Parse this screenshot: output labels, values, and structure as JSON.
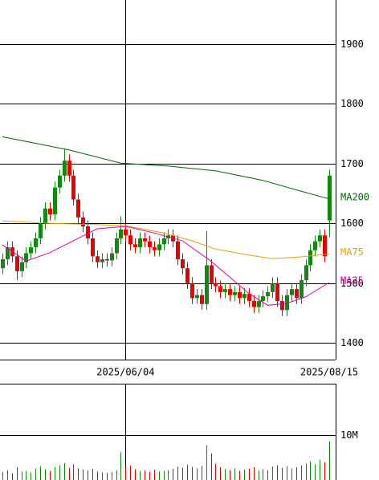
{
  "chart_data": {
    "type": "candlestick",
    "categories": [
      null,
      null,
      null,
      null,
      null,
      null,
      null,
      null,
      null,
      null,
      null,
      null,
      null,
      null,
      null,
      null,
      null,
      null,
      null,
      null,
      null,
      null,
      null,
      null,
      null,
      null,
      "2025/06/04",
      null,
      null,
      null,
      null,
      null,
      null,
      null,
      null,
      null,
      null,
      null,
      null,
      null,
      null,
      null,
      null,
      null,
      null,
      null,
      null,
      null,
      null,
      null,
      null,
      null,
      null,
      null,
      null,
      null,
      null,
      null,
      null,
      null,
      null,
      null,
      null,
      null,
      null,
      null,
      null,
      null,
      null,
      "2025/08/15"
    ],
    "open": [
      1525,
      1540,
      1560,
      1545,
      1520,
      1535,
      1550,
      1560,
      1575,
      1600,
      1625,
      1615,
      1660,
      1680,
      1705,
      1680,
      1640,
      1610,
      1595,
      1575,
      1545,
      1535,
      1540,
      1538,
      1550,
      1575,
      1590,
      1580,
      1565,
      1560,
      1575,
      1570,
      1560,
      1555,
      1565,
      1575,
      1580,
      1570,
      1540,
      1525,
      1500,
      1475,
      1480,
      1465,
      1530,
      1500,
      1495,
      1485,
      1490,
      1480,
      1485,
      1475,
      1482,
      1470,
      1460,
      1470,
      1478,
      1485,
      1500,
      1470,
      1455,
      1480,
      1490,
      1475,
      1505,
      1530,
      1555,
      1570,
      1580,
      1605
    ],
    "high": [
      1550,
      1570,
      1570,
      1555,
      1545,
      1560,
      1570,
      1585,
      1610,
      1635,
      1635,
      1670,
      1690,
      1725,
      1715,
      1690,
      1650,
      1620,
      1605,
      1585,
      1555,
      1550,
      1550,
      1560,
      1585,
      1612,
      1600,
      1590,
      1575,
      1585,
      1585,
      1580,
      1570,
      1575,
      1585,
      1590,
      1590,
      1580,
      1550,
      1535,
      1510,
      1490,
      1490,
      1587,
      1540,
      1510,
      1505,
      1500,
      1500,
      1495,
      1495,
      1492,
      1492,
      1480,
      1480,
      1488,
      1495,
      1510,
      1510,
      1480,
      1490,
      1500,
      1500,
      1515,
      1540,
      1565,
      1580,
      1590,
      1590,
      1690
    ],
    "low": [
      1515,
      1530,
      1535,
      1505,
      1510,
      1525,
      1540,
      1550,
      1565,
      1590,
      1605,
      1605,
      1650,
      1670,
      1670,
      1630,
      1600,
      1585,
      1565,
      1535,
      1525,
      1525,
      1528,
      1528,
      1540,
      1565,
      1570,
      1555,
      1550,
      1550,
      1560,
      1550,
      1545,
      1545,
      1555,
      1565,
      1560,
      1530,
      1515,
      1490,
      1465,
      1465,
      1455,
      1455,
      1490,
      1485,
      1475,
      1475,
      1470,
      1470,
      1465,
      1465,
      1460,
      1450,
      1450,
      1460,
      1468,
      1475,
      1460,
      1445,
      1445,
      1470,
      1465,
      1465,
      1495,
      1520,
      1545,
      1560,
      1535,
      1577
    ],
    "close": [
      1540,
      1560,
      1545,
      1520,
      1535,
      1550,
      1560,
      1575,
      1600,
      1625,
      1615,
      1660,
      1680,
      1705,
      1680,
      1640,
      1610,
      1595,
      1575,
      1545,
      1535,
      1540,
      1538,
      1550,
      1575,
      1590,
      1580,
      1565,
      1560,
      1575,
      1570,
      1560,
      1555,
      1565,
      1575,
      1580,
      1570,
      1540,
      1525,
      1500,
      1475,
      1480,
      1465,
      1530,
      1500,
      1495,
      1485,
      1490,
      1480,
      1485,
      1475,
      1482,
      1470,
      1460,
      1470,
      1478,
      1485,
      1500,
      1470,
      1455,
      1480,
      1490,
      1475,
      1505,
      1530,
      1555,
      1570,
      1580,
      1545,
      1680
    ],
    "up_color": "#118811",
    "down_color": "#e60000",
    "ylim": [
      1372,
      1974
    ],
    "yticks": [
      1400,
      1500,
      1600,
      1700,
      1800,
      1900
    ],
    "series": [
      {
        "name": "MA200",
        "color": "#006600",
        "x": [
          0,
          14,
          25,
          35,
          45,
          55,
          63,
          69
        ],
        "values": [
          1745,
          1723,
          1701,
          1696,
          1688,
          1672,
          1654,
          1641
        ]
      },
      {
        "name": "MA75",
        "color": "#e6a000",
        "x": [
          0,
          10,
          20,
          26,
          34,
          40,
          45,
          52,
          57,
          63,
          69
        ],
        "values": [
          1604,
          1600,
          1598,
          1596,
          1584,
          1571,
          1557,
          1547,
          1541,
          1544,
          1549
        ]
      },
      {
        "name": "MA25",
        "color": "#e600a0",
        "x": [
          0,
          5,
          10,
          15,
          20,
          26,
          32,
          38,
          44,
          48,
          52,
          56,
          60,
          64,
          69
        ],
        "values": [
          1564,
          1537,
          1551,
          1571,
          1591,
          1595,
          1584,
          1571,
          1537,
          1510,
          1483,
          1463,
          1466,
          1477,
          1501
        ]
      }
    ],
    "volume": [
      1800000,
      2200000,
      1500000,
      2800000,
      1900000,
      2000000,
      1700000,
      2600000,
      3100000,
      2400000,
      2000000,
      2900000,
      3300000,
      3800000,
      2700000,
      3500000,
      2600000,
      2300000,
      2100000,
      2500000,
      1900000,
      1700000,
      1600000,
      1800000,
      2200000,
      6200000,
      2800000,
      3200000,
      2400000,
      2000000,
      2100000,
      1800000,
      2300000,
      1900000,
      2000000,
      2200000,
      2500000,
      3000000,
      2700000,
      3400000,
      2900000,
      2600000,
      3100000,
      7700000,
      5900000,
      3600000,
      2800000,
      2400000,
      2200000,
      2600000,
      2000000,
      2300000,
      2500000,
      2900000,
      2100000,
      2400000,
      2200000,
      3000000,
      3300000,
      2700000,
      3100000,
      2600000,
      2800000,
      3200000,
      3700000,
      4100000,
      3500000,
      4500000,
      3900000,
      8600000
    ],
    "vlim": [
      0,
      21400000
    ],
    "vticks": [
      {
        "value": 10000000,
        "label": "10M"
      }
    ]
  }
}
